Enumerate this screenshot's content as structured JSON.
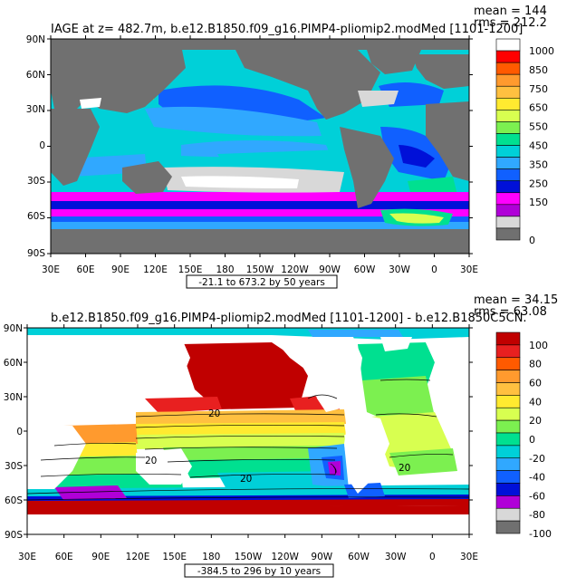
{
  "panels": [
    {
      "title": "IAGE at z= 482.7m, b.e12.B1850.f09_g16.PIMP4-pliomip2.modMed [1101-1200]",
      "mean_label": "mean = 144",
      "rms_label": "rms = 212.2",
      "range_label": "-21.1 to 673.2 by 50 years",
      "colorbar_labels": [
        "1000",
        "850",
        "750",
        "650",
        "550",
        "450",
        "350",
        "250",
        "150",
        "",
        "0"
      ],
      "colorbar_colors": [
        "#ffffff",
        "#ff0000",
        "#ff5a00",
        "#ff9a2e",
        "#ffc040",
        "#ffea30",
        "#d8ff50",
        "#7cf050",
        "#00e090",
        "#00d0d8",
        "#30a8ff",
        "#1060ff",
        "#0010d8",
        "#ff00ff",
        "#b000d8",
        "#d8d8d8",
        "#707070"
      ]
    },
    {
      "title": "b.e12.B1850.f09_g16.PIMP4-pliomip2.modMed [1101-1200] - b.e12.B1850C5CN.",
      "mean_label": "mean = 34.15",
      "rms_label": "rms = 63.08",
      "range_label": "-384.5 to 296 by 10 years",
      "colorbar_labels": [
        "100",
        "80",
        "60",
        "40",
        "20",
        "0",
        "-20",
        "-40",
        "-60",
        "-80",
        "-100"
      ],
      "colorbar_colors": [
        "#c00000",
        "#e82020",
        "#ff5a00",
        "#ff9a2e",
        "#ffc040",
        "#ffea30",
        "#d8ff50",
        "#7cf050",
        "#00e090",
        "#00d0d8",
        "#30a8ff",
        "#1060ff",
        "#0010d8",
        "#b000d8",
        "#d8d8d8",
        "#707070"
      ],
      "contour_labels": [
        "20",
        "20",
        "20",
        "20"
      ]
    }
  ],
  "axes": {
    "lat_labels": [
      "90N",
      "60N",
      "30N",
      "0",
      "30S",
      "60S",
      "90S"
    ],
    "lon_labels": [
      "30E",
      "60E",
      "90E",
      "120E",
      "150E",
      "180",
      "150W",
      "120W",
      "90W",
      "60W",
      "30W",
      "0",
      "30E"
    ]
  }
}
